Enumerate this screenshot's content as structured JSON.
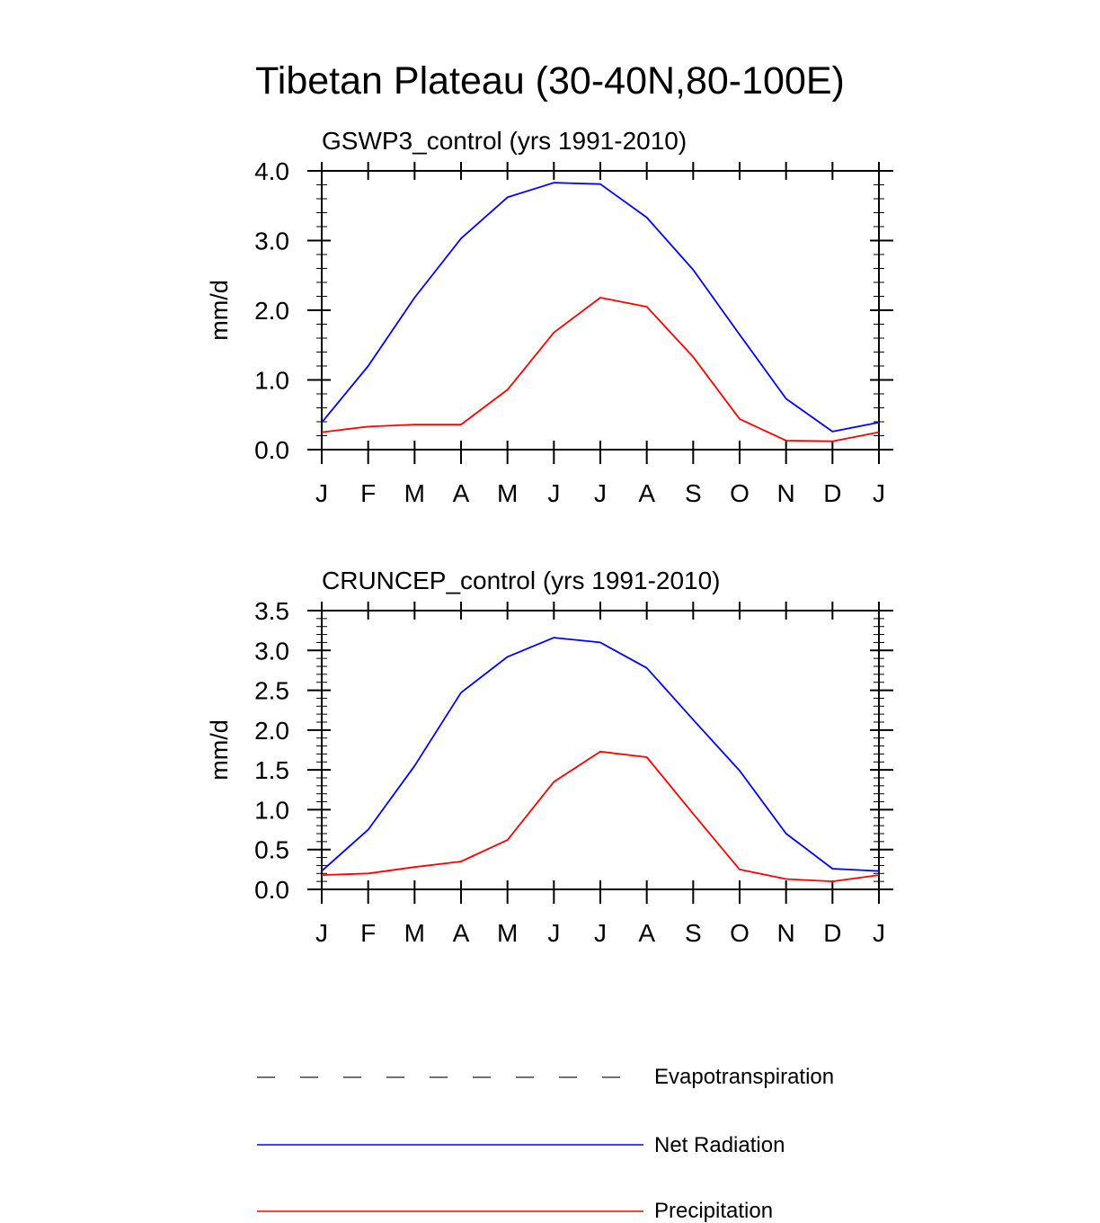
{
  "suptitle": "Tibetan Plateau (30-40N,80-100E)",
  "colors": {
    "net_radiation": "#0000ff",
    "precipitation": "#ff0000",
    "evapotranspiration": "#444444",
    "axis": "#000000"
  },
  "chart_data": [
    {
      "type": "line",
      "title": "GSWP3_control (yrs 1991-2010)",
      "xlabel": "",
      "ylabel": "mm/d",
      "categories": [
        "J",
        "F",
        "M",
        "A",
        "M",
        "J",
        "J",
        "A",
        "S",
        "O",
        "N",
        "D",
        "J"
      ],
      "ylim": [
        0,
        4
      ],
      "yticks": [
        0,
        1,
        2,
        3,
        4
      ],
      "ytick_labels": [
        "0.0",
        "1.0",
        "2.0",
        "3.0",
        "4.0"
      ],
      "series": [
        {
          "name": "Net Radiation",
          "values": [
            0.39,
            1.2,
            2.18,
            3.03,
            3.62,
            3.83,
            3.81,
            3.33,
            2.58,
            1.65,
            0.73,
            0.26,
            0.39
          ]
        },
        {
          "name": "Precipitation",
          "values": [
            0.25,
            0.33,
            0.36,
            0.36,
            0.86,
            1.68,
            2.18,
            2.05,
            1.33,
            0.44,
            0.13,
            0.12,
            0.25
          ]
        }
      ]
    },
    {
      "type": "line",
      "title": "CRUNCEP_control (yrs 1991-2010)",
      "xlabel": "",
      "ylabel": "mm/d",
      "categories": [
        "J",
        "F",
        "M",
        "A",
        "M",
        "J",
        "J",
        "A",
        "S",
        "O",
        "N",
        "D",
        "J"
      ],
      "ylim": [
        0,
        3.5
      ],
      "yticks": [
        0,
        0.5,
        1,
        1.5,
        2,
        2.5,
        3,
        3.5
      ],
      "ytick_labels": [
        "0.0",
        "0.5",
        "1.0",
        "1.5",
        "2.0",
        "2.5",
        "3.0",
        "3.5"
      ],
      "series": [
        {
          "name": "Net Radiation",
          "values": [
            0.23,
            0.75,
            1.55,
            2.47,
            2.92,
            3.16,
            3.1,
            2.78,
            2.13,
            1.49,
            0.7,
            0.26,
            0.23
          ]
        },
        {
          "name": "Precipitation",
          "values": [
            0.18,
            0.2,
            0.28,
            0.35,
            0.62,
            1.35,
            1.73,
            1.66,
            0.95,
            0.25,
            0.13,
            0.1,
            0.18
          ]
        }
      ]
    }
  ],
  "legend": [
    {
      "label": "Evapotranspiration",
      "style": "dashed",
      "color": "#444444"
    },
    {
      "label": "Net Radiation",
      "style": "solid",
      "color": "#0000ff"
    },
    {
      "label": "Precipitation",
      "style": "solid",
      "color": "#ff0000"
    }
  ]
}
